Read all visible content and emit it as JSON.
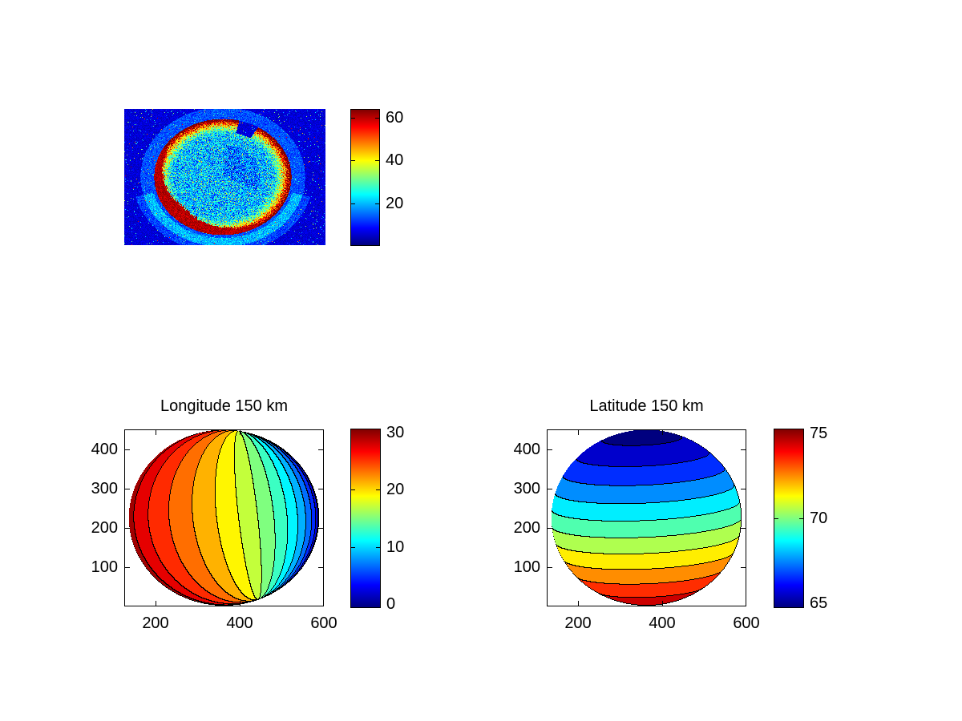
{
  "figure": {
    "background": "#FFFFFF"
  },
  "colors": {
    "colormap": "jet",
    "jet_stops": [
      "#000080",
      "#0000FF",
      "#00FFFF",
      "#FFFF00",
      "#FF0000",
      "#800000"
    ],
    "contour_line": "#000000",
    "text": "#000000"
  },
  "chart_data": [
    {
      "type": "heatmap",
      "id": "radar-image",
      "title": "",
      "description": "Noisy jet-colormap backscatter image of a roughly circular scan region: dark-blue speckled background, cyan/teal speckled interior (values ~10-30), orange-red rim (values ~40-60), solid dark-red crescent along lower-left edge (~60-64), rounded notch cut into the top edge right of center, faint lighter-blue halo ring around the disk",
      "clim": [
        0,
        64
      ],
      "axes_visible": false,
      "colorbar": {
        "ticks": [
          20,
          40,
          60
        ],
        "tick_labels": [
          "20",
          "40",
          "60"
        ],
        "clim": [
          0,
          64
        ]
      },
      "disk": {
        "center_frac": [
          0.488,
          0.497
        ],
        "radius_frac": [
          0.341,
          0.426
        ],
        "interior_value_range": [
          10,
          30
        ],
        "rim_value_range": [
          38,
          62
        ],
        "crescent_value": 60,
        "background_value": 5,
        "notch_angle_deg": [
          59,
          76
        ],
        "noise_seed": 1234567
      }
    },
    {
      "type": "filled-contour",
      "id": "longitude-map",
      "title": "Longitude 150 km",
      "xlim": [
        126,
        600
      ],
      "ylim": [
        1,
        452
      ],
      "x_ticks": [
        200,
        400,
        600
      ],
      "x_tick_labels": [
        "200",
        "400",
        "600"
      ],
      "y_ticks": [
        100,
        200,
        300,
        400
      ],
      "y_tick_labels": [
        "100",
        "200",
        "300",
        "400"
      ],
      "clim": [
        0,
        30
      ],
      "levels_start": 0,
      "levels_step": 2,
      "n_bands": 15,
      "colorbar": {
        "ticks": [
          0,
          10,
          20,
          30
        ],
        "tick_labels": [
          "0",
          "10",
          "20",
          "30"
        ],
        "clim": [
          -0.5,
          30.5
        ]
      },
      "disk": {
        "center_data": [
          363,
          227
        ],
        "radius_data": [
          226,
          224
        ]
      },
      "field": {
        "kind": "orthographic-longitude",
        "value_left_limb": 30,
        "value_center": 19,
        "value_right_limb": 0,
        "pole_shift_a": 0.2615,
        "pole_shift_b": -0.1055,
        "center_boost": 2
      }
    },
    {
      "type": "filled-contour",
      "id": "latitude-map",
      "title": "Latitude 150 km",
      "xlim": [
        126,
        600
      ],
      "ylim": [
        1,
        452
      ],
      "x_ticks": [
        200,
        400,
        600
      ],
      "x_tick_labels": [
        "200",
        "400",
        "600"
      ],
      "y_ticks": [
        100,
        200,
        300,
        400
      ],
      "y_tick_labels": [
        "100",
        "200",
        "300",
        "400"
      ],
      "clim": [
        64.7,
        75.3
      ],
      "levels_start": 64,
      "levels_step": 1,
      "n_bands": 12,
      "colorbar": {
        "ticks": [
          65,
          70,
          75
        ],
        "tick_labels": [
          "65",
          "70",
          "75"
        ],
        "clim": [
          64.7,
          75.3
        ]
      },
      "disk": {
        "center_data": [
          363,
          227
        ],
        "radius_data": [
          226,
          224
        ]
      },
      "field": {
        "kind": "orthographic-latitude",
        "value_top": 65,
        "value_middle": 69,
        "value_bottom": 75,
        "base": 71.0,
        "scale": 5.2,
        "v_shift": 0.25,
        "u_tilt": 0.05,
        "beta_deg": -10
      }
    }
  ]
}
